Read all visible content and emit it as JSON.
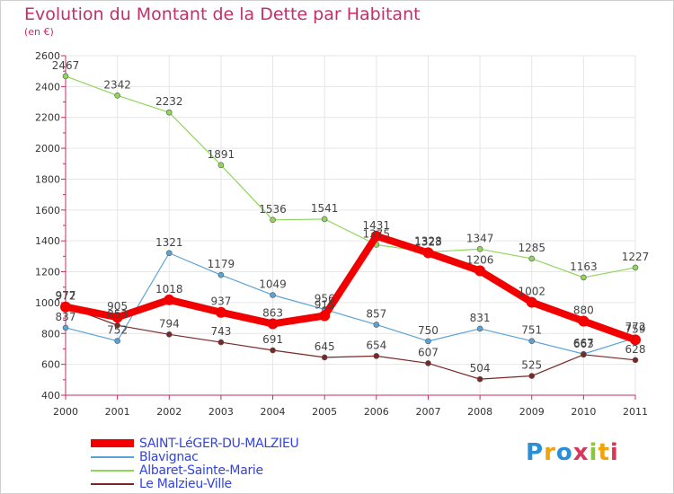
{
  "title": "Evolution du Montant de la Dette par Habitant",
  "subtitle": "(en €)",
  "logo": {
    "text": "Proxiti",
    "letters": [
      "P",
      "r",
      "o",
      "x",
      "i",
      "t",
      "i"
    ],
    "colors": [
      "#2a8fd6",
      "#f2a20c",
      "#2a8fd6",
      "#d9365b",
      "#8cc63f",
      "#f2a20c",
      "#d9365b"
    ]
  },
  "chart_data": {
    "type": "line",
    "x": [
      "2000",
      "2001",
      "2002",
      "2003",
      "2004",
      "2005",
      "2006",
      "2007",
      "2008",
      "2009",
      "2010",
      "2011"
    ],
    "ylim": [
      400,
      2600
    ],
    "yticks": [
      400,
      600,
      800,
      1000,
      1200,
      1400,
      1600,
      1800,
      2000,
      2200,
      2400,
      2600
    ],
    "grid": true,
    "legend_position": "bottom-left",
    "series": [
      {
        "name": "SAINT-LéGER-DU-MALZIEU",
        "color": "#f20000",
        "values": [
          972,
          905,
          1018,
          937,
          863,
          915,
          1431,
          1323,
          1206,
          1002,
          880,
          759
        ]
      },
      {
        "name": "Blavignac",
        "color": "#5ba3d6",
        "values": [
          837,
          752,
          1321,
          1179,
          1049,
          956,
          857,
          750,
          831,
          751,
          667,
          772
        ]
      },
      {
        "name": "Albaret-Sainte-Marie",
        "color": "#8fd65a",
        "values": [
          2467,
          2342,
          2232,
          1891,
          1536,
          1541,
          1375,
          1328,
          1347,
          1285,
          1163,
          1227
        ]
      },
      {
        "name": "Le Malzieu-Ville",
        "color": "#7a2727",
        "values": [
          977,
          853,
          794,
          743,
          691,
          645,
          654,
          607,
          504,
          525,
          663,
          628
        ]
      }
    ]
  }
}
